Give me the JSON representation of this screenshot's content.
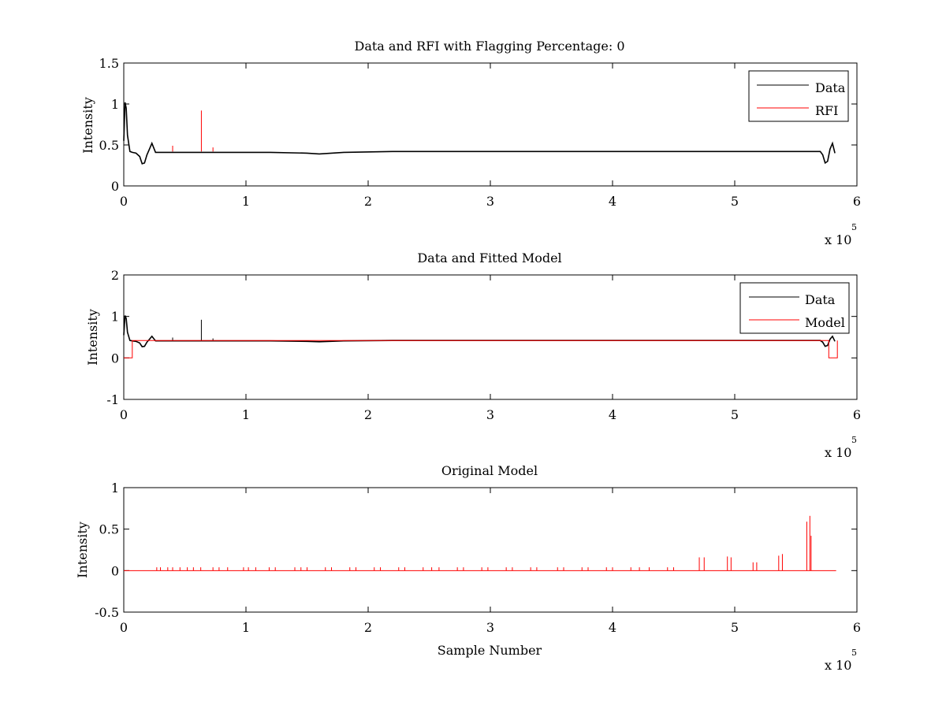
{
  "figure": {
    "background": "#ffffff",
    "axes_color": "#000000"
  },
  "chart_data": [
    {
      "type": "line",
      "title": "Data and RFI with Flagging Percentage: 0",
      "xlabel": "",
      "ylabel": "Intensity",
      "xlim": [
        0,
        6
      ],
      "ylim": [
        0,
        1.5
      ],
      "x_exponent_label": "x 10",
      "x_exponent": "5",
      "x_ticks": [
        "0",
        "1",
        "2",
        "3",
        "4",
        "5",
        "6"
      ],
      "y_ticks": [
        "0",
        "0.5",
        "1",
        "1.5"
      ],
      "legend": {
        "position": "top-right",
        "entries": [
          "Data",
          "RFI"
        ]
      },
      "series": [
        {
          "name": "Data",
          "color": "#000000",
          "x": [
            0.0,
            0.01,
            0.02,
            0.03,
            0.05,
            0.07,
            0.1,
            0.13,
            0.15,
            0.17,
            0.19,
            0.21,
            0.23,
            0.26,
            0.4,
            0.8,
            1.2,
            1.5,
            1.6,
            1.8,
            2.2,
            2.6,
            3.0,
            3.4,
            3.8,
            4.2,
            4.6,
            5.0,
            5.4,
            5.6,
            5.7,
            5.72,
            5.74,
            5.76,
            5.78,
            5.8,
            5.82
          ],
          "y": [
            0.55,
            1.02,
            0.95,
            0.62,
            0.42,
            0.41,
            0.4,
            0.36,
            0.27,
            0.28,
            0.38,
            0.45,
            0.52,
            0.41,
            0.41,
            0.41,
            0.41,
            0.4,
            0.39,
            0.41,
            0.42,
            0.42,
            0.42,
            0.42,
            0.42,
            0.42,
            0.42,
            0.42,
            0.42,
            0.42,
            0.42,
            0.38,
            0.28,
            0.3,
            0.45,
            0.52,
            0.4
          ]
        },
        {
          "name": "RFI",
          "color": "#ff0000",
          "spikes": [
            {
              "x": 0.4,
              "y": 0.49
            },
            {
              "x": 0.635,
              "y": 0.92
            },
            {
              "x": 0.73,
              "y": 0.47
            }
          ]
        }
      ]
    },
    {
      "type": "line",
      "title": "Data and Fitted Model",
      "xlabel": "",
      "ylabel": "Intensity",
      "xlim": [
        0,
        6
      ],
      "ylim": [
        -1,
        2
      ],
      "x_exponent_label": "x 10",
      "x_exponent": "5",
      "x_ticks": [
        "0",
        "1",
        "2",
        "3",
        "4",
        "5",
        "6"
      ],
      "y_ticks": [
        "-1",
        "0",
        "1",
        "2"
      ],
      "legend": {
        "position": "top-right",
        "entries": [
          "Data",
          "Model"
        ]
      },
      "series": [
        {
          "name": "Data",
          "color": "#000000",
          "x": [
            0.0,
            0.01,
            0.02,
            0.03,
            0.05,
            0.07,
            0.1,
            0.13,
            0.15,
            0.17,
            0.19,
            0.21,
            0.23,
            0.26,
            0.4,
            0.8,
            1.2,
            1.5,
            1.6,
            1.8,
            2.2,
            2.6,
            3.0,
            3.4,
            3.8,
            4.2,
            4.6,
            5.0,
            5.4,
            5.6,
            5.7,
            5.72,
            5.74,
            5.76,
            5.78,
            5.8,
            5.82
          ],
          "y": [
            0.55,
            1.02,
            0.95,
            0.62,
            0.42,
            0.41,
            0.4,
            0.36,
            0.27,
            0.28,
            0.38,
            0.45,
            0.52,
            0.41,
            0.41,
            0.41,
            0.41,
            0.4,
            0.39,
            0.41,
            0.42,
            0.42,
            0.42,
            0.42,
            0.42,
            0.42,
            0.42,
            0.42,
            0.42,
            0.42,
            0.42,
            0.38,
            0.28,
            0.3,
            0.45,
            0.52,
            0.4
          ],
          "spikes": [
            {
              "x": 0.4,
              "y": 0.49
            },
            {
              "x": 0.635,
              "y": 0.92
            },
            {
              "x": 0.73,
              "y": 0.47
            }
          ]
        },
        {
          "name": "Model",
          "color": "#ff0000",
          "x": [
            0.0,
            0.07,
            0.07,
            5.77,
            5.77,
            5.84,
            5.84
          ],
          "y": [
            0.0,
            0.0,
            0.42,
            0.42,
            0.0,
            0.0,
            0.42
          ]
        }
      ]
    },
    {
      "type": "line",
      "title": "Original Model",
      "xlabel": "Sample Number",
      "ylabel": "Intensity",
      "xlim": [
        0,
        6
      ],
      "ylim": [
        -0.5,
        1
      ],
      "x_exponent_label": "x 10",
      "x_exponent": "5",
      "x_ticks": [
        "0",
        "1",
        "2",
        "3",
        "4",
        "5",
        "6"
      ],
      "y_ticks": [
        "-0.5",
        "0",
        "0.5",
        "1"
      ],
      "series": [
        {
          "name": "Model",
          "color": "#ff0000",
          "baseline": 0,
          "x_range": [
            0,
            5.83
          ],
          "small_spike_x": [
            0.27,
            0.3,
            0.36,
            0.4,
            0.46,
            0.52,
            0.57,
            0.63,
            0.73,
            0.78,
            0.85,
            0.98,
            1.02,
            1.08,
            1.19,
            1.24,
            1.4,
            1.45,
            1.5,
            1.65,
            1.7,
            1.85,
            1.9,
            2.05,
            2.1,
            2.25,
            2.3,
            2.45,
            2.52,
            2.58,
            2.73,
            2.78,
            2.93,
            2.98,
            3.13,
            3.18,
            3.33,
            3.38,
            3.55,
            3.6,
            3.75,
            3.8,
            3.95,
            4.0,
            4.15,
            4.22,
            4.3,
            4.45,
            4.5
          ],
          "small_spike_y": 0.04,
          "spikes": [
            {
              "x": 4.71,
              "y": 0.16
            },
            {
              "x": 4.75,
              "y": 0.16
            },
            {
              "x": 4.94,
              "y": 0.17
            },
            {
              "x": 4.97,
              "y": 0.16
            },
            {
              "x": 5.15,
              "y": 0.1
            },
            {
              "x": 5.18,
              "y": 0.1
            },
            {
              "x": 5.36,
              "y": 0.18
            },
            {
              "x": 5.39,
              "y": 0.2
            },
            {
              "x": 5.59,
              "y": 0.59
            },
            {
              "x": 5.615,
              "y": 0.66
            },
            {
              "x": 5.625,
              "y": 0.42
            }
          ]
        }
      ]
    }
  ]
}
